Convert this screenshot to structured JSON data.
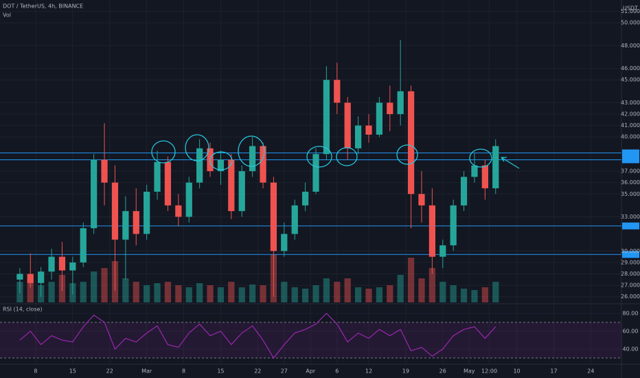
{
  "chart_data": {
    "type": "candlestick",
    "title": "DOT / TetherUS, 4h, BINANCE",
    "volume_label": "Vol",
    "rsi_label": "RSI (14, close)",
    "currency": "USDT",
    "up_color": "#26a69a",
    "down_color": "#ef5350",
    "rsi_color": "#9c27b0",
    "level_color": "#2196f3",
    "categories": [
      null,
      null,
      null,
      null,
      null,
      null,
      null,
      null,
      null,
      null,
      null,
      null,
      null,
      null,
      null,
      null,
      null,
      null,
      null,
      null,
      null,
      null,
      null,
      null,
      null,
      null,
      null,
      null,
      null,
      null,
      null,
      null,
      null,
      null,
      null,
      null,
      null,
      null,
      null,
      null,
      null,
      null,
      null,
      null,
      null,
      null
    ],
    "ohlc": [
      [
        27.5,
        28.5,
        26.3,
        28.0
      ],
      [
        28.0,
        29.8,
        26.8,
        27.2
      ],
      [
        27.2,
        28.6,
        26.0,
        28.2
      ],
      [
        28.2,
        30.2,
        27.5,
        29.5
      ],
      [
        29.5,
        30.8,
        26.5,
        28.3
      ],
      [
        28.3,
        29.5,
        26.2,
        29.0
      ],
      [
        29.0,
        32.5,
        28.6,
        32.0
      ],
      [
        32.0,
        38.5,
        31.5,
        38.0
      ],
      [
        38.0,
        41.2,
        34.0,
        36.0
      ],
      [
        36.0,
        37.5,
        26.5,
        31.0
      ],
      [
        31.0,
        34.8,
        27.5,
        33.5
      ],
      [
        33.5,
        35.5,
        30.5,
        31.5
      ],
      [
        31.5,
        35.8,
        31.0,
        35.2
      ],
      [
        35.2,
        38.8,
        34.5,
        37.8
      ],
      [
        37.8,
        38.3,
        33.5,
        34.0
      ],
      [
        34.0,
        35.0,
        32.2,
        33.0
      ],
      [
        33.0,
        36.5,
        32.5,
        36.0
      ],
      [
        36.0,
        39.8,
        35.5,
        39.0
      ],
      [
        39.0,
        39.5,
        36.5,
        37.0
      ],
      [
        37.0,
        38.8,
        35.8,
        38.0
      ],
      [
        38.0,
        38.5,
        32.8,
        33.5
      ],
      [
        33.5,
        37.5,
        33.0,
        37.0
      ],
      [
        37.0,
        40.0,
        36.5,
        39.2
      ],
      [
        39.2,
        39.5,
        35.5,
        36.0
      ],
      [
        36.0,
        36.5,
        26.0,
        30.0
      ],
      [
        30.0,
        32.5,
        29.5,
        31.5
      ],
      [
        31.5,
        34.5,
        31.0,
        34.0
      ],
      [
        34.0,
        36.0,
        33.5,
        35.2
      ],
      [
        35.2,
        39.0,
        35.0,
        38.5
      ],
      [
        38.5,
        46.2,
        38.0,
        45.0
      ],
      [
        45.0,
        46.5,
        42.0,
        43.0
      ],
      [
        43.0,
        43.5,
        38.0,
        39.0
      ],
      [
        39.0,
        41.8,
        38.5,
        41.0
      ],
      [
        41.0,
        42.0,
        39.5,
        40.2
      ],
      [
        40.2,
        43.5,
        40.0,
        43.0
      ],
      [
        43.0,
        44.5,
        40.5,
        42.0
      ],
      [
        42.0,
        48.5,
        41.0,
        44.0
      ],
      [
        44.0,
        44.5,
        32.0,
        35.0
      ],
      [
        35.0,
        37.0,
        32.5,
        34.0
      ],
      [
        34.0,
        35.5,
        28.0,
        29.5
      ],
      [
        29.5,
        31.0,
        28.5,
        30.5
      ],
      [
        30.5,
        34.5,
        30.0,
        34.0
      ],
      [
        34.0,
        37.0,
        33.5,
        36.5
      ],
      [
        36.5,
        38.6,
        36.0,
        37.5
      ],
      [
        37.5,
        38.0,
        34.5,
        35.5
      ],
      [
        35.5,
        39.8,
        35.0,
        39.2
      ]
    ],
    "volume": [
      30,
      35,
      25,
      30,
      40,
      28,
      30,
      45,
      50,
      60,
      35,
      30,
      25,
      28,
      30,
      25,
      22,
      28,
      25,
      22,
      30,
      22,
      26,
      25,
      70,
      30,
      22,
      20,
      25,
      35,
      30,
      35,
      22,
      20,
      22,
      25,
      40,
      65,
      35,
      50,
      30,
      25,
      20,
      18,
      22,
      30
    ],
    "volume_lim": [
      0,
      100
    ],
    "rsi": [
      50,
      60,
      45,
      55,
      50,
      48,
      65,
      78,
      70,
      40,
      52,
      48,
      58,
      66,
      45,
      42,
      58,
      68,
      55,
      60,
      45,
      58,
      66,
      50,
      30,
      45,
      58,
      62,
      68,
      80,
      68,
      48,
      58,
      52,
      62,
      55,
      62,
      38,
      42,
      32,
      40,
      55,
      62,
      65,
      52,
      65
    ],
    "levels": [
      38.6,
      38.0,
      32.2,
      29.7
    ],
    "xlim": [
      -1.875,
      56.9
    ],
    "xticks": [
      {
        "value": 1.5,
        "label": "8"
      },
      {
        "value": 5,
        "label": "15"
      },
      {
        "value": 8.5,
        "label": "22"
      },
      {
        "value": 12,
        "label": "Mar"
      },
      {
        "value": 15.5,
        "label": "8"
      },
      {
        "value": 19,
        "label": "15"
      },
      {
        "value": 22.5,
        "label": "22"
      },
      {
        "value": 25,
        "label": "27"
      },
      {
        "value": 27.5,
        "label": "Apr"
      },
      {
        "value": 30,
        "label": "6"
      },
      {
        "value": 33,
        "label": "12"
      },
      {
        "value": 36.5,
        "label": "19"
      },
      {
        "value": 40,
        "label": "26"
      },
      {
        "value": 42.5,
        "label": "May"
      },
      {
        "value": 44.4,
        "label": "12:00"
      },
      {
        "value": 47,
        "label": "10"
      },
      {
        "value": 50.5,
        "label": "17"
      },
      {
        "value": 54,
        "label": "24"
      }
    ],
    "ylim": [
      25.5,
      52
    ],
    "yticks": [
      {
        "value": 51,
        "label": "51.000"
      },
      {
        "value": 50,
        "label": "50.000"
      },
      {
        "value": 48,
        "label": "48.000"
      },
      {
        "value": 46,
        "label": "46.000"
      },
      {
        "value": 45,
        "label": "45.000"
      },
      {
        "value": 43,
        "label": "43.000"
      },
      {
        "value": 42,
        "label": "42.000"
      },
      {
        "value": 41,
        "label": "41.000"
      },
      {
        "value": 40,
        "label": "40.000"
      },
      {
        "value": 37,
        "label": "37.000"
      },
      {
        "value": 36,
        "label": "36.000"
      },
      {
        "value": 35,
        "label": "35.000"
      },
      {
        "value": 33,
        "label": "33.000"
      },
      {
        "value": 30,
        "label": "30.000"
      },
      {
        "value": 29,
        "label": "29.000"
      },
      {
        "value": 28,
        "label": "28.000"
      },
      {
        "value": 27,
        "label": "27.000"
      },
      {
        "value": 26,
        "label": "26.000"
      }
    ],
    "rsi_lim": [
      23,
      89.2
    ],
    "rsi_ticks": [
      {
        "value": 80,
        "label": "80.00"
      },
      {
        "value": 60,
        "label": "60.00"
      },
      {
        "value": 40,
        "label": "40.00"
      }
    ],
    "rsi_bands": [
      70,
      30
    ],
    "grid": true
  }
}
